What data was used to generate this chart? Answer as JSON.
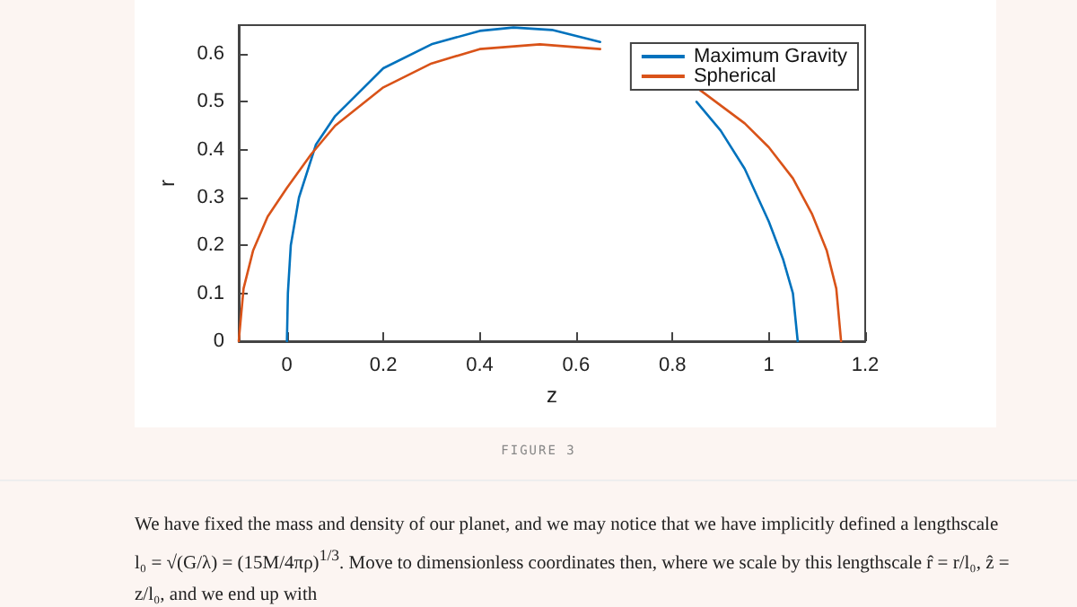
{
  "chart_data": {
    "type": "line",
    "xlabel": "z",
    "ylabel": "r",
    "xlim": [
      -0.1,
      1.2
    ],
    "xticks": [
      0,
      0.2,
      0.4,
      0.6,
      0.8,
      1,
      1.2
    ],
    "ylim": [
      0,
      0.66
    ],
    "yticks": [
      0,
      0.1,
      0.2,
      0.3,
      0.4,
      0.5,
      0.6
    ],
    "grid": false,
    "legend": "top right",
    "marker": "none",
    "line_style": "solid",
    "series": [
      {
        "name": "Maximum Gravity",
        "color": "#0072bd",
        "x": [
          0,
          0.002,
          0.008,
          0.025,
          0.06,
          0.1,
          0.2,
          0.3,
          0.4,
          0.47,
          0.55,
          0.65,
          0.75,
          0.8,
          0.85,
          0.9,
          0.95,
          1.0,
          1.03,
          1.05,
          1.06
        ],
        "values": [
          0,
          0.1,
          0.2,
          0.3,
          0.41,
          0.47,
          0.57,
          0.62,
          0.648,
          0.655,
          0.65,
          0.625,
          null,
          null,
          0.5,
          0.44,
          0.36,
          0.25,
          0.17,
          0.1,
          0
        ]
      },
      {
        "name": "Spherical",
        "color": "#d95319",
        "x": [
          -0.1,
          -0.09,
          -0.07,
          -0.04,
          0,
          0.05,
          0.1,
          0.2,
          0.3,
          0.4,
          0.525,
          0.65,
          0.75,
          0.85,
          0.95,
          1.0,
          1.05,
          1.09,
          1.12,
          1.14,
          1.15
        ],
        "values": [
          0,
          0.11,
          0.19,
          0.26,
          0.32,
          0.39,
          0.45,
          0.53,
          0.58,
          0.61,
          0.62,
          0.61,
          null,
          0.53,
          0.455,
          0.405,
          0.34,
          0.265,
          0.19,
          0.11,
          0
        ]
      }
    ],
    "annotations": [
      "FIGURE 3",
      "We have fixed the mass and density of our planet, and we may notice that we have implicitly defined a lengthscale l₀ = √(G/λ) = (15M/4πρ)$^{1/3}$. Move to dimensionless coordinates then, where we scale by this lengthscale r̂ = r/l₀, ẑ = z/l₀, and we end up with"
    ]
  }
}
